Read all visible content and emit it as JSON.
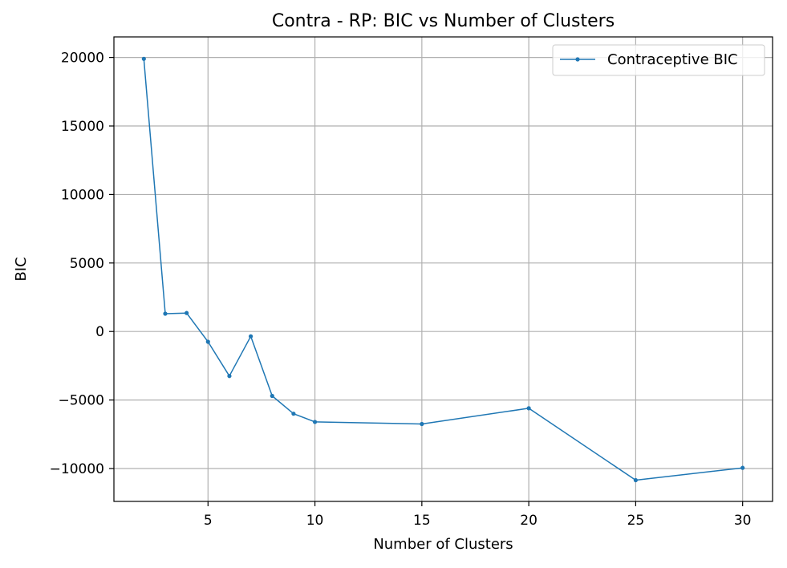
{
  "chart_data": {
    "type": "line",
    "title": "Contra - RP: BIC vs Number of Clusters",
    "xlabel": "Number of Clusters",
    "ylabel": "BIC",
    "xlim": [
      0.6,
      31.4
    ],
    "ylim": [
      -12400,
      21500
    ],
    "xticks": [
      5,
      10,
      15,
      20,
      25,
      30
    ],
    "yticks": [
      -10000,
      -5000,
      0,
      5000,
      10000,
      15000,
      20000
    ],
    "ytick_labels": [
      "−10000",
      "−5000",
      "0",
      "5000",
      "10000",
      "15000",
      "20000"
    ],
    "grid": true,
    "legend_position": "top-right",
    "series": [
      {
        "name": "Contraceptive BIC",
        "color": "#1f77b4",
        "marker": "dot",
        "x": [
          2,
          3,
          4,
          5,
          6,
          7,
          8,
          9,
          10,
          15,
          20,
          25,
          30
        ],
        "y": [
          19900,
          1300,
          1350,
          -750,
          -3250,
          -350,
          -4700,
          -6000,
          -6600,
          -6750,
          -5600,
          -10850,
          -9950
        ]
      }
    ]
  }
}
